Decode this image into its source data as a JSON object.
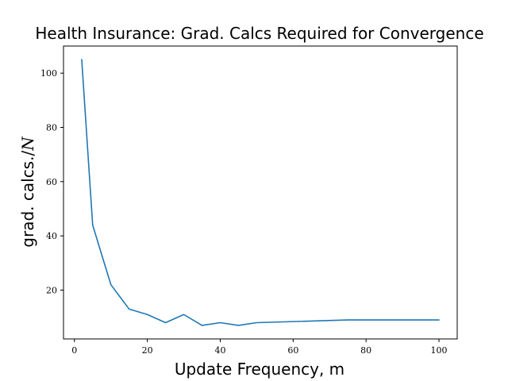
{
  "chart_data": {
    "type": "line",
    "title": "Health Insurance: Grad. Calcs Required for Convergence",
    "xlabel": "Update Frequency, m",
    "ylabel_prefix": "grad. calcs./",
    "ylabel_var": "N",
    "xlim": [
      -3,
      105
    ],
    "ylim": [
      2,
      110
    ],
    "x_ticks": [
      0,
      20,
      40,
      60,
      80,
      100
    ],
    "y_ticks": [
      20,
      40,
      60,
      80,
      100
    ],
    "grid": false,
    "series": [
      {
        "color": "#1f77b4",
        "x": [
          2,
          5,
          10,
          15,
          20,
          25,
          30,
          35,
          40,
          45,
          50,
          75,
          100
        ],
        "y": [
          105,
          44,
          22,
          13,
          11,
          8,
          11,
          7,
          8,
          7,
          8,
          9,
          9
        ]
      }
    ]
  }
}
